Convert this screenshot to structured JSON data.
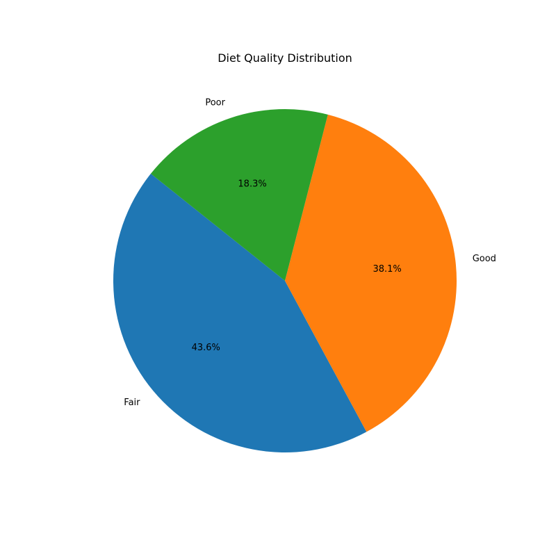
{
  "chart_data": {
    "type": "pie",
    "title": "Diet Quality Distribution",
    "slices": [
      {
        "label": "Fair",
        "value": 43.6,
        "percent_label": "43.6%",
        "color": "#1f77b4"
      },
      {
        "label": "Good",
        "value": 38.1,
        "percent_label": "38.1%",
        "color": "#ff7f0e"
      },
      {
        "label": "Poor",
        "value": 18.3,
        "percent_label": "18.3%",
        "color": "#2ca02c"
      }
    ],
    "legend": "none"
  }
}
